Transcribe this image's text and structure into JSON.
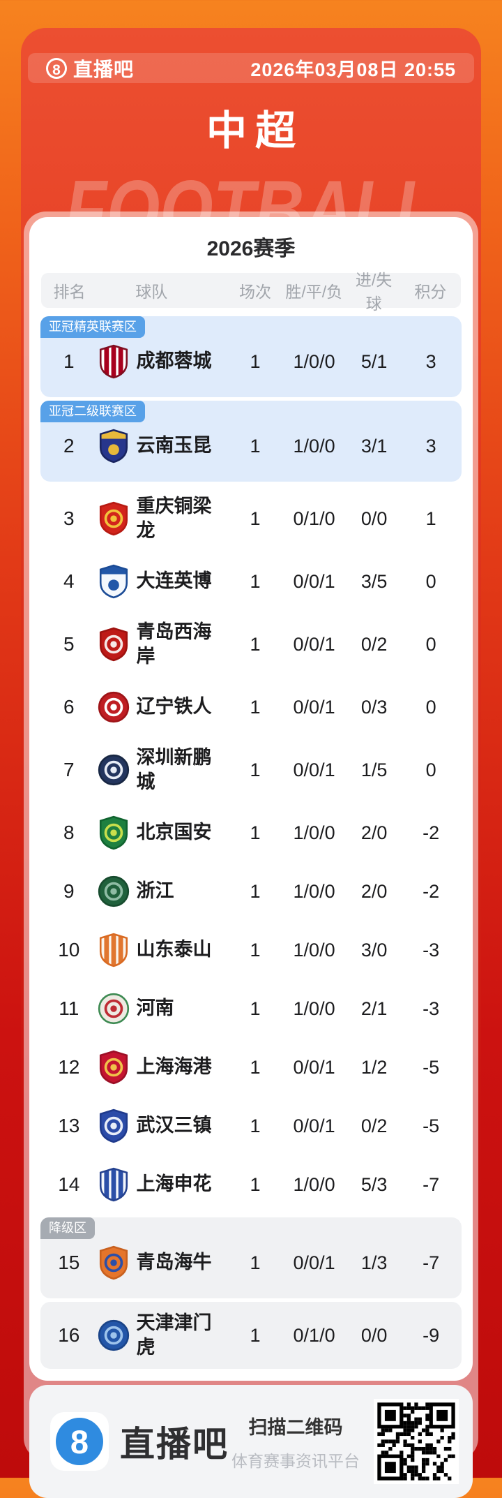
{
  "header": {
    "brand": "直播吧",
    "brand_digit": "8",
    "datetime": "2026年03月08日 20:55"
  },
  "title": "中超",
  "watermark": "FOOTBALL",
  "table": {
    "season_title": "2026赛季",
    "columns": [
      "排名",
      "球队",
      "场次",
      "胜/平/负",
      "进/失球",
      "积分"
    ],
    "zone_colors": {
      "acl_badge": "#58A1E8",
      "relegation_badge": "#A6ABB2",
      "acl_row_bg": "#DFEBFB",
      "relegation_row_bg": "#F0F1F3"
    },
    "rows": [
      {
        "rank": "1",
        "team": "成都蓉城",
        "played": "1",
        "wdl": "1/0/0",
        "goals": "5/1",
        "points": "3",
        "zone_badge": "亚冠精英联赛区",
        "zone": "acl",
        "logo": {
          "shape": "shield",
          "base": "#FFFFFF",
          "accent": "#A8001E",
          "border": "#7E0E20",
          "style": "stripes"
        }
      },
      {
        "rank": "2",
        "team": "云南玉昆",
        "played": "1",
        "wdl": "1/0/0",
        "goals": "3/1",
        "points": "3",
        "zone_badge": "亚冠二级联赛区",
        "zone": "acl",
        "logo": {
          "shape": "shield",
          "base": "#27368C",
          "accent": "#E8B93B",
          "border": "#1A2560",
          "style": "band"
        }
      },
      {
        "rank": "3",
        "team": "重庆铜梁龙",
        "played": "1",
        "wdl": "0/1/0",
        "goals": "0/0",
        "points": "1",
        "zone_badge": null,
        "zone": "none",
        "logo": {
          "shape": "shield",
          "base": "#D2241B",
          "accent": "#F2C33C",
          "border": "#B71A12",
          "style": "ring"
        }
      },
      {
        "rank": "4",
        "team": "大连英博",
        "played": "1",
        "wdl": "0/0/1",
        "goals": "3/5",
        "points": "0",
        "zone_badge": null,
        "zone": "none",
        "logo": {
          "shape": "shield",
          "base": "#F4F8FD",
          "accent": "#2257A8",
          "border": "#1C4C96",
          "style": "band"
        }
      },
      {
        "rank": "5",
        "team": "青岛西海岸",
        "played": "1",
        "wdl": "0/0/1",
        "goals": "0/2",
        "points": "0",
        "zone_badge": null,
        "zone": "none",
        "logo": {
          "shape": "shield",
          "base": "#BE1A17",
          "accent": "#F6E8E6",
          "border": "#9E120F",
          "style": "ring"
        }
      },
      {
        "rank": "6",
        "team": "辽宁铁人",
        "played": "1",
        "wdl": "0/0/1",
        "goals": "0/3",
        "points": "0",
        "zone_badge": null,
        "zone": "none",
        "logo": {
          "shape": "circle",
          "base": "#BF1E23",
          "accent": "#FFFFFF",
          "border": "#9E1418",
          "style": "ring"
        }
      },
      {
        "rank": "7",
        "team": "深圳新鹏城",
        "played": "1",
        "wdl": "0/0/1",
        "goals": "1/5",
        "points": "0",
        "zone_badge": null,
        "zone": "none",
        "logo": {
          "shape": "circle",
          "base": "#23355E",
          "accent": "#E8EDF6",
          "border": "#182743",
          "style": "ring"
        }
      },
      {
        "rank": "8",
        "team": "北京国安",
        "played": "1",
        "wdl": "1/0/0",
        "goals": "2/0",
        "points": "-2",
        "zone_badge": null,
        "zone": "none",
        "logo": {
          "shape": "shield",
          "base": "#1E8040",
          "accent": "#C9DF4C",
          "border": "#10632F",
          "style": "ring"
        }
      },
      {
        "rank": "9",
        "team": "浙江",
        "played": "1",
        "wdl": "1/0/0",
        "goals": "2/0",
        "points": "-2",
        "zone_badge": null,
        "zone": "none",
        "logo": {
          "shape": "circle",
          "base": "#20613C",
          "accent": "#8FBCA4",
          "border": "#174B2E",
          "style": "ring"
        }
      },
      {
        "rank": "10",
        "team": "山东泰山",
        "played": "1",
        "wdl": "1/0/0",
        "goals": "3/0",
        "points": "-3",
        "zone_badge": null,
        "zone": "none",
        "logo": {
          "shape": "shield",
          "base": "#FAF4EC",
          "accent": "#E1762F",
          "border": "#D96A22",
          "style": "stripes"
        }
      },
      {
        "rank": "11",
        "team": "河南",
        "played": "1",
        "wdl": "1/0/0",
        "goals": "2/1",
        "points": "-3",
        "zone_badge": null,
        "zone": "none",
        "logo": {
          "shape": "circle",
          "base": "#EDEAE2",
          "accent": "#BE2B33",
          "border": "#3D8A52",
          "style": "ring"
        }
      },
      {
        "rank": "12",
        "team": "上海海港",
        "played": "1",
        "wdl": "0/0/1",
        "goals": "1/2",
        "points": "-5",
        "zone_badge": null,
        "zone": "none",
        "logo": {
          "shape": "shield",
          "base": "#C41430",
          "accent": "#F0C24A",
          "border": "#9C0F26",
          "style": "ring"
        }
      },
      {
        "rank": "13",
        "team": "武汉三镇",
        "played": "1",
        "wdl": "0/0/1",
        "goals": "0/2",
        "points": "-5",
        "zone_badge": null,
        "zone": "none",
        "logo": {
          "shape": "shield",
          "base": "#2B4BA8",
          "accent": "#E8EDF8",
          "border": "#1F3A8C",
          "style": "ring"
        }
      },
      {
        "rank": "14",
        "team": "上海申花",
        "played": "1",
        "wdl": "1/0/0",
        "goals": "5/3",
        "points": "-7",
        "zone_badge": null,
        "zone": "none",
        "logo": {
          "shape": "shield",
          "base": "#F2F6FC",
          "accent": "#2B4FA8",
          "border": "#24418F",
          "style": "stripes"
        }
      },
      {
        "rank": "15",
        "team": "青岛海牛",
        "played": "1",
        "wdl": "0/0/1",
        "goals": "1/3",
        "points": "-7",
        "zone_badge": "降级区",
        "zone": "relegation",
        "logo": {
          "shape": "shield",
          "base": "#E5752B",
          "accent": "#2B4FA8",
          "border": "#C8601E",
          "style": "ring"
        }
      },
      {
        "rank": "16",
        "team": "天津津门虎",
        "played": "1",
        "wdl": "0/1/0",
        "goals": "0/0",
        "points": "-9",
        "zone_badge": null,
        "zone": "relegation",
        "logo": {
          "shape": "circle",
          "base": "#2356A8",
          "accent": "#9EC4EC",
          "border": "#1A4488",
          "style": "ring"
        }
      }
    ]
  },
  "footer": {
    "brand": "直播吧",
    "brand_digit": "8",
    "scan_text": "扫描二维码",
    "platform_text": "体育赛事资讯平台"
  },
  "colors": {
    "page_bg_top": "#F6831F",
    "page_bg_bottom": "#BE0B0B",
    "card_red": "#D92A16",
    "footer_bg": "#F3F4F6",
    "footer_logo_blue": "#2F8BE0"
  }
}
